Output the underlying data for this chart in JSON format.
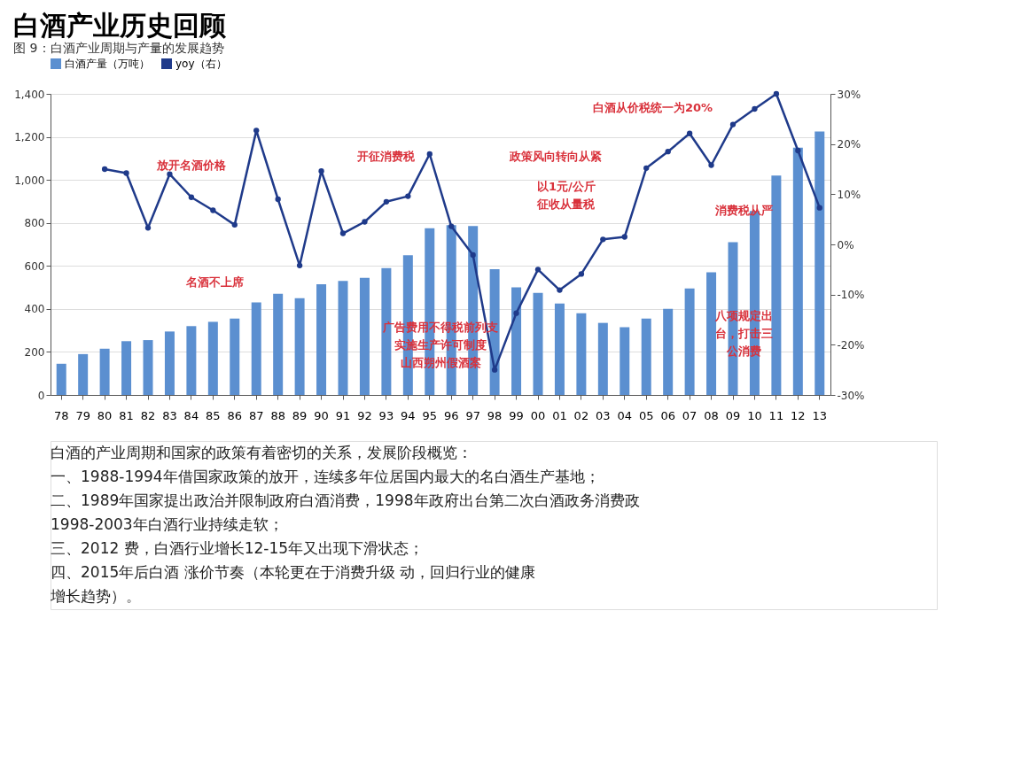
{
  "chart_data": {
    "type": "bar",
    "title": "白酒产业历史回顾",
    "subtitle": "图 9：白酒产业周期与产量的发展趋势",
    "categories": [
      "78",
      "79",
      "80",
      "81",
      "82",
      "83",
      "84",
      "85",
      "86",
      "87",
      "88",
      "89",
      "90",
      "91",
      "92",
      "93",
      "94",
      "95",
      "96",
      "97",
      "98",
      "99",
      "00",
      "01",
      "02",
      "03",
      "04",
      "05",
      "06",
      "07",
      "08",
      "09",
      "10",
      "11",
      "12",
      "13"
    ],
    "series": [
      {
        "name": "白酒产量（万吨）",
        "color": "#5b8fd0",
        "values": [
          145,
          190,
          215,
          250,
          255,
          295,
          320,
          340,
          355,
          430,
          470,
          450,
          515,
          530,
          545,
          590,
          650,
          775,
          790,
          785,
          585,
          500,
          475,
          425,
          380,
          335,
          315,
          355,
          400,
          495,
          570,
          710,
          855,
          1020,
          1150,
          1225
        ]
      },
      {
        "name": "yoy（右）",
        "type": "line",
        "axis": "y2",
        "color": "#1f3a8a",
        "values": [
          null,
          null,
          15.0,
          14.2,
          3.3,
          14.0,
          9.4,
          6.8,
          3.9,
          22.7,
          9.0,
          -4.2,
          14.6,
          2.2,
          4.5,
          8.5,
          9.6,
          18,
          3.6,
          -2.1,
          -25,
          -13.7,
          -5.0,
          -9.1,
          -5.9,
          1.0,
          1.5,
          15.2,
          18.5,
          22.1,
          15.8,
          23.9,
          27.0,
          30,
          18.7,
          7.3
        ]
      }
    ],
    "ylim": [
      0,
      1400
    ],
    "yticks": [
      0,
      200,
      400,
      600,
      800,
      {
        "value": 1000,
        "label": "1,000"
      },
      {
        "value": 1200,
        "label": "1,200"
      },
      {
        "value": 1400,
        "label": "1,400"
      }
    ],
    "y2lim": [
      -30,
      30
    ],
    "y2ticks": [
      {
        "value": -30,
        "label": "-30%"
      },
      {
        "value": -20,
        "label": "-20%"
      },
      {
        "value": -10,
        "label": "-10%"
      },
      {
        "value": 0,
        "label": "0%"
      },
      {
        "value": 10,
        "label": "10%"
      },
      {
        "value": 20,
        "label": "20%"
      },
      {
        "value": 30,
        "label": "30%"
      }
    ],
    "grid": "y",
    "legend": "top",
    "marker": "circle",
    "line_style": "solid",
    "annotations": [
      "放开名酒价格",
      "名酒不上席",
      "开征消费税",
      "政策风向转向从紧",
      "以1元/公斤征收从量税",
      "白酒从价税统一为20%",
      "消费税从严",
      "八项规定出台，打击三公消费",
      "广告费用不得税前列支实施生产许可制度山西朔州假酒案",
      "白酒的产业周期和国家的政策有着密切的关系，发展阶段概览：",
      "一、1988-1994年借国家政策的放开，连续多年位居国内最大的名白酒生产基地；",
      "二、1989年国家提出政治并限制政府白酒消费，1998年政府出台第二次白酒政务消费政",
      "1998-2003年白酒行业持续走软；",
      "三、2012 费，白酒行业增长12-15年又出现下滑状态；",
      "四、2015年后白酒 涨价节奏（本轮更在于消费升级 动，回归行业的健康",
      "增长趋势）。"
    ]
  }
}
